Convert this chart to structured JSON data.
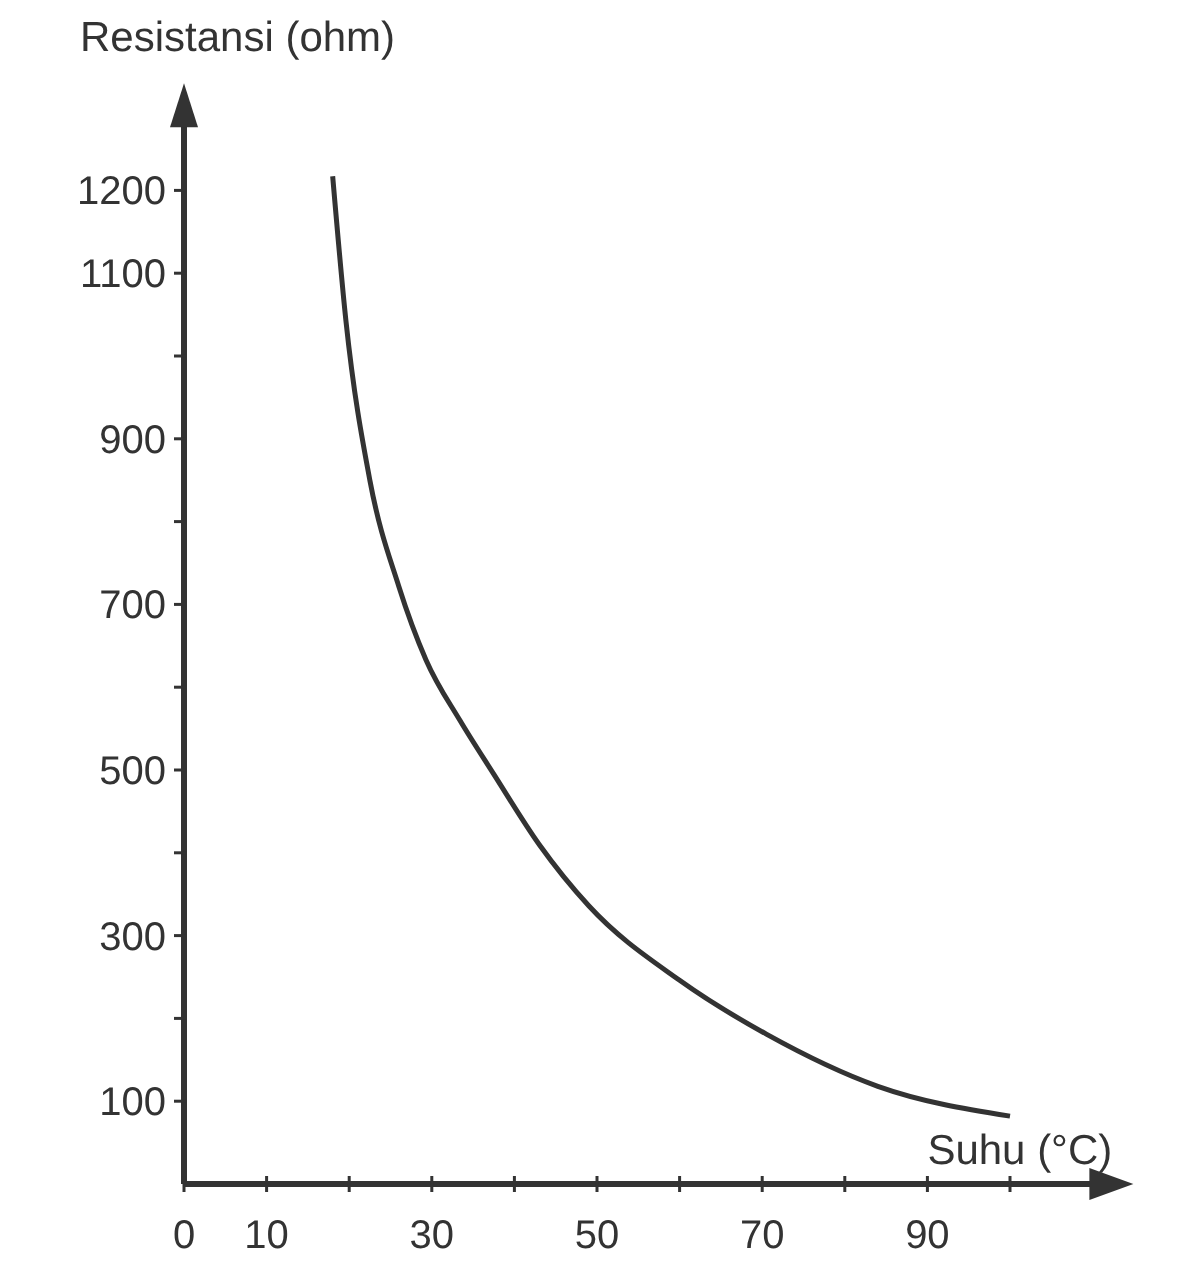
{
  "chart_data": {
    "type": "line",
    "xlabel": "Suhu (°C)",
    "ylabel": "Resistansi (ohm)",
    "xlim": [
      0,
      113
    ],
    "ylim": [
      0,
      1310
    ],
    "xticks": [
      0,
      10,
      {
        "value": 20,
        "label": null
      },
      30,
      {
        "value": 40,
        "label": null
      },
      50,
      {
        "value": 60,
        "label": null
      },
      70,
      {
        "value": 80,
        "label": null
      },
      90,
      {
        "value": 100,
        "label": null
      }
    ],
    "yticks": [
      100,
      {
        "value": 200,
        "label": null
      },
      300,
      {
        "value": 400,
        "label": null
      },
      500,
      {
        "value": 600,
        "label": null
      },
      700,
      {
        "value": 800,
        "label": null
      },
      900,
      {
        "value": 1000,
        "label": null
      },
      1100,
      1200
    ],
    "grid": false,
    "marker": "none",
    "line_style": "solid",
    "series": [
      {
        "color": "#333333",
        "x": [
          18,
          19.6,
          22.5,
          26,
          29.3,
          33.4,
          37.5,
          43,
          49,
          60,
          70.5,
          84,
          100
        ],
        "values": [
          1217,
          1043,
          850,
          722,
          633,
          560,
          495,
          410,
          336,
          246,
          181,
          118,
          82
        ]
      }
    ]
  }
}
